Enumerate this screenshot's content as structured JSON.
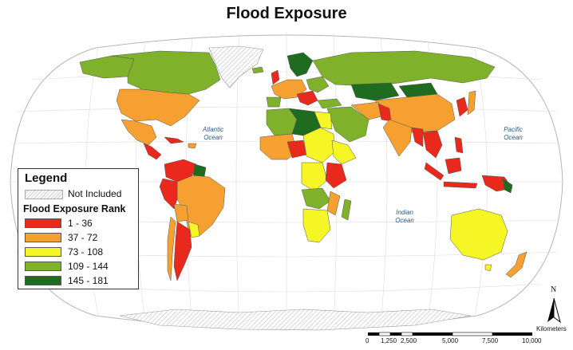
{
  "title": "Flood Exposure",
  "legend": {
    "title": "Legend",
    "not_included": "Not Included",
    "rank_title": "Flood Exposure Rank",
    "classes": [
      {
        "label": "1 - 36",
        "color": "#e8291c"
      },
      {
        "label": "37 - 72",
        "color": "#f5a030"
      },
      {
        "label": "73 - 108",
        "color": "#f6f525"
      },
      {
        "label": "109 - 144",
        "color": "#7fb22a"
      },
      {
        "label": "145 - 181",
        "color": "#1f6b1f"
      }
    ]
  },
  "oceans": {
    "atlantic": [
      "Atlantic",
      "Ocean"
    ],
    "pacific": [
      "Pacific",
      "Ocean"
    ],
    "indian": [
      "Indian",
      "Ocean"
    ]
  },
  "scale": {
    "unit": "Kilometers",
    "ticks": [
      "0",
      "1,250",
      "2,500",
      "5,000",
      "7,500",
      "10,000"
    ]
  },
  "north_label": "N",
  "colors": {
    "ocean": "#ffffff",
    "graticule": "#d8d8d8",
    "not_included": "#d9d9d9",
    "land_default": "#e0e0e0"
  }
}
